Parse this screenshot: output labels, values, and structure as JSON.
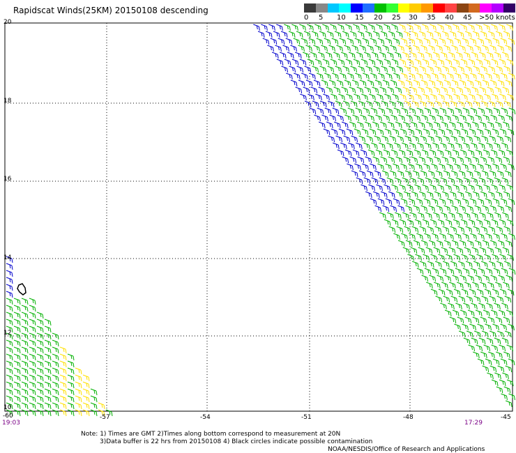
{
  "title": "Rapidscat Winds(25KM) 20150108 descending",
  "legend": {
    "colors": [
      "#3a3a3a",
      "#888888",
      "#00c8ff",
      "#00ffff",
      "#0000ff",
      "#1f6fff",
      "#00c000",
      "#33ff33",
      "#ffff00",
      "#ffcc00",
      "#ff9900",
      "#ff0000",
      "#ff4444",
      "#8b4513",
      "#d2691e",
      "#ff00ff",
      "#b300ff",
      "#330066"
    ],
    "labels": [
      "0",
      "5",
      "10",
      "15",
      "20",
      "25",
      "30",
      "35",
      "40",
      "45",
      ">50 knots"
    ]
  },
  "lat_labels": [
    "20",
    "18",
    "16",
    "14",
    "12",
    "10"
  ],
  "lon_labels": [
    "-60",
    "-57",
    "-54",
    "-51",
    "-48",
    "-45"
  ],
  "times": {
    "left": "19:03",
    "right": "17:29"
  },
  "notes": {
    "line1": "Note: 1) Times are GMT 2)Times along bottom correspond to measurement at 20N",
    "line2": "3)Data buffer is 22 hrs from 20150108 4) Black circles indicate possible contamination",
    "line3": "NOAA/NESDIS/Office of Research and Applications"
  },
  "map": {
    "lon_range": [
      -60,
      -45
    ],
    "lat_range": [
      10,
      20
    ],
    "wind_colors": {
      "blue": "#0000cc",
      "green": "#00b000",
      "yellow": "#ffe000",
      "black": "#000000"
    }
  }
}
